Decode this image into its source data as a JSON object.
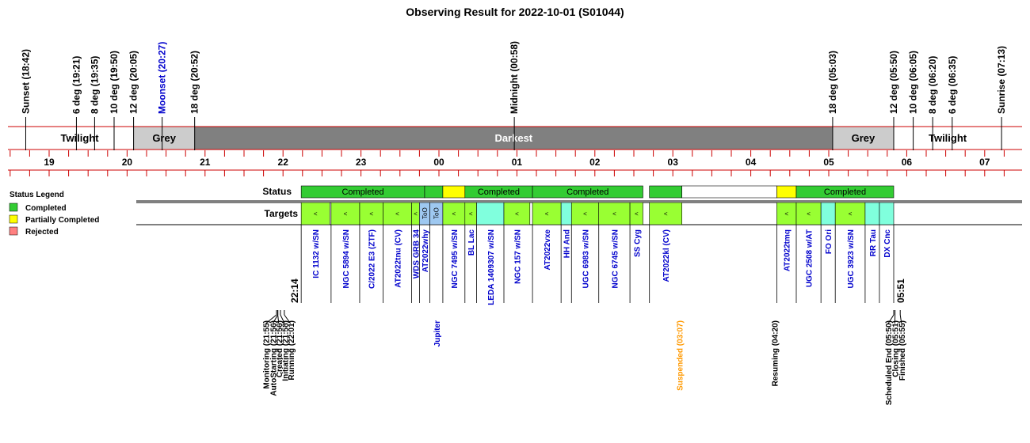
{
  "colors": {
    "completed": "#33cc33",
    "partial": "#ffff00",
    "rejected": "#ff8080",
    "target_green": "#99ff33",
    "target_cyan": "#80ffdd",
    "target_blue": "#9ec8f0",
    "twilight_bg": "#ffffff",
    "grey_bg": "#cccccc",
    "dark_bg": "#808080",
    "red_line": "#cc0000",
    "blue_text": "#0000cc",
    "orange_text": "#ff9900"
  },
  "legend": {
    "title": "Status Legend",
    "items": [
      {
        "label": "Completed",
        "color": "#33cc33"
      },
      {
        "label": "Partially Completed",
        "color": "#ffff00"
      },
      {
        "label": "Rejected",
        "color": "#ff8080"
      }
    ]
  },
  "chart_data": {
    "type": "timeline",
    "title": "Observing Result for 2022-10-01 (S01044)",
    "x_axis": {
      "unit": "hour",
      "min": 18.5,
      "max": 7.4,
      "labels": [
        "19",
        "20",
        "21",
        "22",
        "23",
        "00",
        "01",
        "02",
        "03",
        "04",
        "05",
        "06",
        "07"
      ]
    },
    "sky_events": [
      {
        "label": "Sunset (18:42)",
        "time": "18:42",
        "color": "#000000"
      },
      {
        "label": "6 deg (19:21)",
        "time": "19:21",
        "color": "#000000"
      },
      {
        "label": "8 deg (19:35)",
        "time": "19:35",
        "color": "#000000"
      },
      {
        "label": "10 deg (19:50)",
        "time": "19:50",
        "color": "#000000"
      },
      {
        "label": "12 deg (20:05)",
        "time": "20:05",
        "color": "#000000"
      },
      {
        "label": "Moonset (20:27)",
        "time": "20:27",
        "color": "#0000cc"
      },
      {
        "label": "18 deg (20:52)",
        "time": "20:52",
        "color": "#000000"
      },
      {
        "label": "Midnight (00:58)",
        "time": "00:58",
        "color": "#000000"
      },
      {
        "label": "18 deg (05:03)",
        "time": "05:03",
        "color": "#000000"
      },
      {
        "label": "12 deg (05:50)",
        "time": "05:50",
        "color": "#000000"
      },
      {
        "label": "10 deg (06:05)",
        "time": "06:05",
        "color": "#000000"
      },
      {
        "label": "8 deg (06:20)",
        "time": "06:20",
        "color": "#000000"
      },
      {
        "label": "6 deg (06:35)",
        "time": "06:35",
        "color": "#000000"
      },
      {
        "label": "Sunrise (07:13)",
        "time": "07:13",
        "color": "#000000"
      }
    ],
    "sky_bands": [
      {
        "label": "Twilight",
        "start": "18:42",
        "end": "20:05",
        "kind": "twilight"
      },
      {
        "label": "Grey",
        "start": "20:05",
        "end": "20:52",
        "kind": "grey"
      },
      {
        "label": "Darkest",
        "start": "20:52",
        "end": "05:03",
        "kind": "dark"
      },
      {
        "label": "Grey",
        "start": "05:03",
        "end": "05:50",
        "kind": "grey"
      },
      {
        "label": "Twilight",
        "start": "05:50",
        "end": "07:13",
        "kind": "twilight"
      }
    ],
    "rows": {
      "status": "Status",
      "targets": "Targets"
    },
    "status_segments": [
      {
        "start": "22:14",
        "end": "23:49",
        "status": "completed",
        "label": "Completed"
      },
      {
        "start": "23:49",
        "end": "00:03",
        "status": "completed",
        "label": ""
      },
      {
        "start": "00:03",
        "end": "00:20",
        "status": "partial",
        "label": ""
      },
      {
        "start": "00:20",
        "end": "01:12",
        "status": "completed",
        "label": "Completed"
      },
      {
        "start": "01:12",
        "end": "02:37",
        "status": "completed",
        "label": "Completed"
      },
      {
        "start": "02:42",
        "end": "03:07",
        "status": "completed",
        "label": ""
      },
      {
        "start": "03:07",
        "end": "04:20",
        "status": "none",
        "label": ""
      },
      {
        "start": "04:20",
        "end": "04:35",
        "status": "partial",
        "label": ""
      },
      {
        "start": "04:35",
        "end": "05:50",
        "status": "completed",
        "label": "Completed"
      }
    ],
    "targets": [
      {
        "name": "IC 1132 w/SN",
        "start": "22:14",
        "end": "22:36",
        "fill": "green",
        "marker": "<"
      },
      {
        "name": "NGC 5894 w/SN",
        "start": "22:37",
        "end": "22:59",
        "fill": "green",
        "marker": "<"
      },
      {
        "name": "C/2022 E3 (ZTF)",
        "start": "22:59",
        "end": "23:17",
        "fill": "green",
        "marker": "<"
      },
      {
        "name": "AT2022tnu (CV)",
        "start": "23:17",
        "end": "23:39",
        "fill": "green",
        "marker": "<"
      },
      {
        "name": "WDS GRB 34",
        "start": "23:39",
        "end": "23:45",
        "fill": "green",
        "marker": "<"
      },
      {
        "name": "AT2022why",
        "start": "23:45",
        "end": "23:53",
        "fill": "blue",
        "marker": "ToO"
      },
      {
        "name": "",
        "start": "23:53",
        "end": "00:03",
        "fill": "blue",
        "marker": "ToO"
      },
      {
        "name": "NGC 7495 w/SN",
        "start": "00:03",
        "end": "00:20",
        "fill": "green",
        "marker": "<"
      },
      {
        "name": "BL Lac",
        "start": "00:20",
        "end": "00:29",
        "fill": "green",
        "marker": "<"
      },
      {
        "name": "LEDA 1409307 w/SN",
        "start": "00:29",
        "end": "00:50",
        "fill": "cyan",
        "marker": ""
      },
      {
        "name": "NGC 157 w/SN",
        "start": "00:50",
        "end": "01:10",
        "fill": "green",
        "marker": "<"
      },
      {
        "name": "AT2022vxe",
        "start": "01:12",
        "end": "01:34",
        "fill": "green",
        "marker": "<"
      },
      {
        "name": "HH And",
        "start": "01:34",
        "end": "01:42",
        "fill": "cyan",
        "marker": ""
      },
      {
        "name": "UGC 6983 w/SN",
        "start": "01:42",
        "end": "02:03",
        "fill": "green",
        "marker": "<"
      },
      {
        "name": "NGC 6745 w/SN",
        "start": "02:03",
        "end": "02:27",
        "fill": "green",
        "marker": "<"
      },
      {
        "name": "SS Cyg",
        "start": "02:27",
        "end": "02:37",
        "fill": "green",
        "marker": "<"
      },
      {
        "name": "AT2022kl (CV)",
        "start": "02:42",
        "end": "03:07",
        "fill": "green",
        "marker": "<"
      },
      {
        "name": "AT2022tmq",
        "start": "04:20",
        "end": "04:35",
        "fill": "green",
        "marker": "<"
      },
      {
        "name": "UGC 2508 w/AT",
        "start": "04:35",
        "end": "04:54",
        "fill": "green",
        "marker": "<"
      },
      {
        "name": "FO Ori",
        "start": "04:54",
        "end": "05:05",
        "fill": "cyan",
        "marker": ""
      },
      {
        "name": "UGC 3923 w/SN",
        "start": "05:05",
        "end": "05:28",
        "fill": "green",
        "marker": "<"
      },
      {
        "name": "RR Tau",
        "start": "05:28",
        "end": "05:39",
        "fill": "cyan",
        "marker": ""
      },
      {
        "name": "DX Cnc",
        "start": "05:39",
        "end": "05:50",
        "fill": "cyan",
        "marker": ""
      }
    ],
    "start_time_label": "22:14",
    "end_time_label": "05:51",
    "events": [
      {
        "label": "Monitoring (21:55)",
        "time": "21:55",
        "color": "#000000"
      },
      {
        "label": "AutoStarting (21:56)",
        "time": "21:56",
        "color": "#000000"
      },
      {
        "label": "Created (21:56)",
        "time": "21:56",
        "color": "#000000"
      },
      {
        "label": "Initiating (21:58)",
        "time": "21:58",
        "color": "#000000"
      },
      {
        "label": "Running (22:01)",
        "time": "22:01",
        "color": "#000000"
      },
      {
        "label": "Jupiter",
        "time": "00:00",
        "color": "#0000cc"
      },
      {
        "label": "Suspended (03:07)",
        "time": "03:07",
        "color": "#ff9900"
      },
      {
        "label": "Resuming (04:20)",
        "time": "04:20",
        "color": "#000000"
      },
      {
        "label": "Scheduled End (05:50)",
        "time": "05:50",
        "color": "#000000"
      },
      {
        "label": "Closing (05:51)",
        "time": "05:51",
        "color": "#000000"
      },
      {
        "label": "Finished (05:55)",
        "time": "05:55",
        "color": "#000000"
      }
    ]
  }
}
